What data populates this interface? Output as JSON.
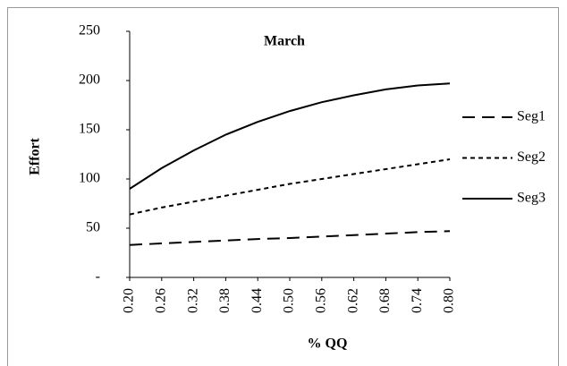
{
  "chart_data": {
    "type": "line",
    "title": "March",
    "xlabel": "% QQ",
    "ylabel": "Effort",
    "x": [
      0.2,
      0.26,
      0.32,
      0.38,
      0.44,
      0.5,
      0.56,
      0.62,
      0.68,
      0.74,
      0.8
    ],
    "series": [
      {
        "name": "Seg1",
        "color": "#000000",
        "dash": "long",
        "values": [
          33,
          34.5,
          36,
          37.5,
          39,
          40,
          41.5,
          43,
          44.5,
          46,
          47
        ]
      },
      {
        "name": "Seg2",
        "color": "#000000",
        "dash": "short",
        "values": [
          64,
          71,
          77,
          83,
          89,
          95,
          100,
          105,
          110,
          115,
          120
        ]
      },
      {
        "name": "Seg3",
        "color": "#000000",
        "dash": "solid",
        "values": [
          90,
          111,
          129,
          145,
          158,
          169,
          178,
          185,
          191,
          195,
          197
        ]
      }
    ],
    "xlim": [
      0.2,
      0.8
    ],
    "xticks": [
      {
        "value": 0.2,
        "label": "0.20"
      },
      {
        "value": 0.26,
        "label": "0.26"
      },
      {
        "value": 0.32,
        "label": "0.32"
      },
      {
        "value": 0.38,
        "label": "0.38"
      },
      {
        "value": 0.44,
        "label": "0.44"
      },
      {
        "value": 0.5,
        "label": "0.50"
      },
      {
        "value": 0.56,
        "label": "0.56"
      },
      {
        "value": 0.62,
        "label": "0.62"
      },
      {
        "value": 0.68,
        "label": "0.68"
      },
      {
        "value": 0.74,
        "label": "0.74"
      },
      {
        "value": 0.8,
        "label": "0.80"
      }
    ],
    "ylim": [
      0,
      250
    ],
    "yticks": [
      {
        "value": 0,
        "label": "-"
      },
      50,
      100,
      150,
      200,
      250
    ],
    "legend": "right"
  }
}
